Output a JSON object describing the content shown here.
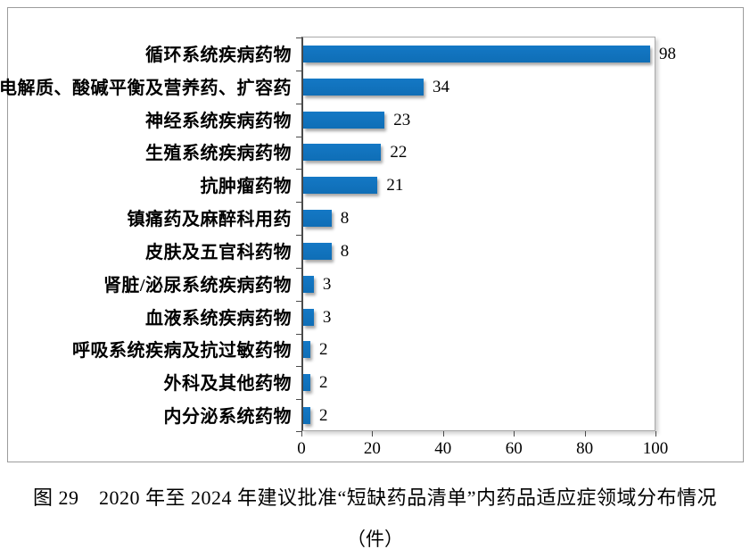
{
  "figure": {
    "caption_line1": "图 29　2020 年至 2024 年建议批准“短缺药品清单”内药品适应症领域分布情况",
    "caption_line2": "（件）"
  },
  "chart_data": {
    "type": "bar",
    "orientation": "horizontal",
    "title": "",
    "xlabel": "",
    "ylabel": "",
    "categories": [
      "循环系统疾病药物",
      "电解质、酸碱平衡及营养药、扩容药",
      "神经系统疾病药物",
      "生殖系统疾病药物",
      "抗肿瘤药物",
      "镇痛药及麻醉科用药",
      "皮肤及五官科药物",
      "肾脏/泌尿系统疾病药物",
      "血液系统疾病药物",
      "呼吸系统疾病及抗过敏药物",
      "外科及其他药物",
      "内分泌系统药物"
    ],
    "values": [
      98,
      34,
      23,
      22,
      21,
      8,
      8,
      3,
      3,
      2,
      2,
      2
    ],
    "x_ticks": [
      0,
      20,
      40,
      60,
      80,
      100
    ],
    "xlim": [
      0,
      100
    ],
    "bar_color": "#1072BC",
    "data_labels": true,
    "grid": false,
    "legend": false
  }
}
